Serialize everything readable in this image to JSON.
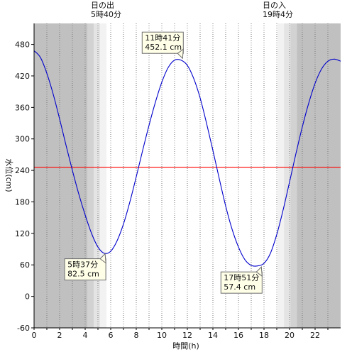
{
  "chart_data": {
    "type": "line",
    "xlabel": "時間(h)",
    "ylabel": "水位(cm)",
    "xlim": [
      0,
      24
    ],
    "ylim": [
      -60,
      520
    ],
    "x_ticks": [
      "0",
      "2",
      "4",
      "6",
      "8",
      "10",
      "12",
      "14",
      "16",
      "18",
      "20",
      "22"
    ],
    "y_ticks": [
      "-60",
      "0",
      "60",
      "120",
      "180",
      "240",
      "300",
      "360",
      "420",
      "480"
    ],
    "grid": "vertical-dotted",
    "reference_line": {
      "value": 246,
      "color": "#ff0000"
    },
    "line_color": "#0000cc",
    "night_color": "#c0c0c0",
    "sunrise": {
      "title": "日の出",
      "time": "5時40分",
      "hour": 5.667
    },
    "sunset": {
      "title": "日の入",
      "time": "19時4分",
      "hour": 19.067
    },
    "series": [
      {
        "x": [
          0,
          0.5,
          1,
          1.5,
          2,
          2.5,
          3,
          3.5,
          4,
          4.5,
          5,
          5.5,
          6,
          6.5,
          7,
          7.5,
          8,
          8.5,
          9,
          9.5,
          10,
          10.5,
          11,
          11.5,
          12,
          12.5,
          13,
          13.5,
          14,
          14.5,
          15,
          15.5,
          16,
          16.5,
          17,
          17.5,
          18,
          18.5,
          19,
          19.5,
          20,
          20.5,
          21,
          21.5,
          22,
          22.5,
          23,
          23.5,
          24
        ],
        "values": [
          468,
          455,
          425,
          385,
          338,
          288,
          240,
          195,
          155,
          120,
          94,
          82,
          86,
          106,
          138,
          180,
          228,
          278,
          326,
          370,
          408,
          436,
          450,
          450,
          440,
          415,
          378,
          330,
          278,
          224,
          172,
          128,
          94,
          70,
          59,
          58,
          63,
          82,
          118,
          165,
          218,
          272,
          323,
          368,
          406,
          433,
          448,
          452,
          448
        ]
      }
    ],
    "annotations": [
      {
        "time": "11時41分",
        "value": "452.1 cm",
        "hour": 11.683,
        "level": 452.1
      },
      {
        "time": "5時37分",
        "value": "82.5 cm",
        "hour": 5.617,
        "level": 82.5
      },
      {
        "time": "17時51分",
        "value": "57.4 cm",
        "hour": 17.85,
        "level": 57.4
      }
    ]
  }
}
